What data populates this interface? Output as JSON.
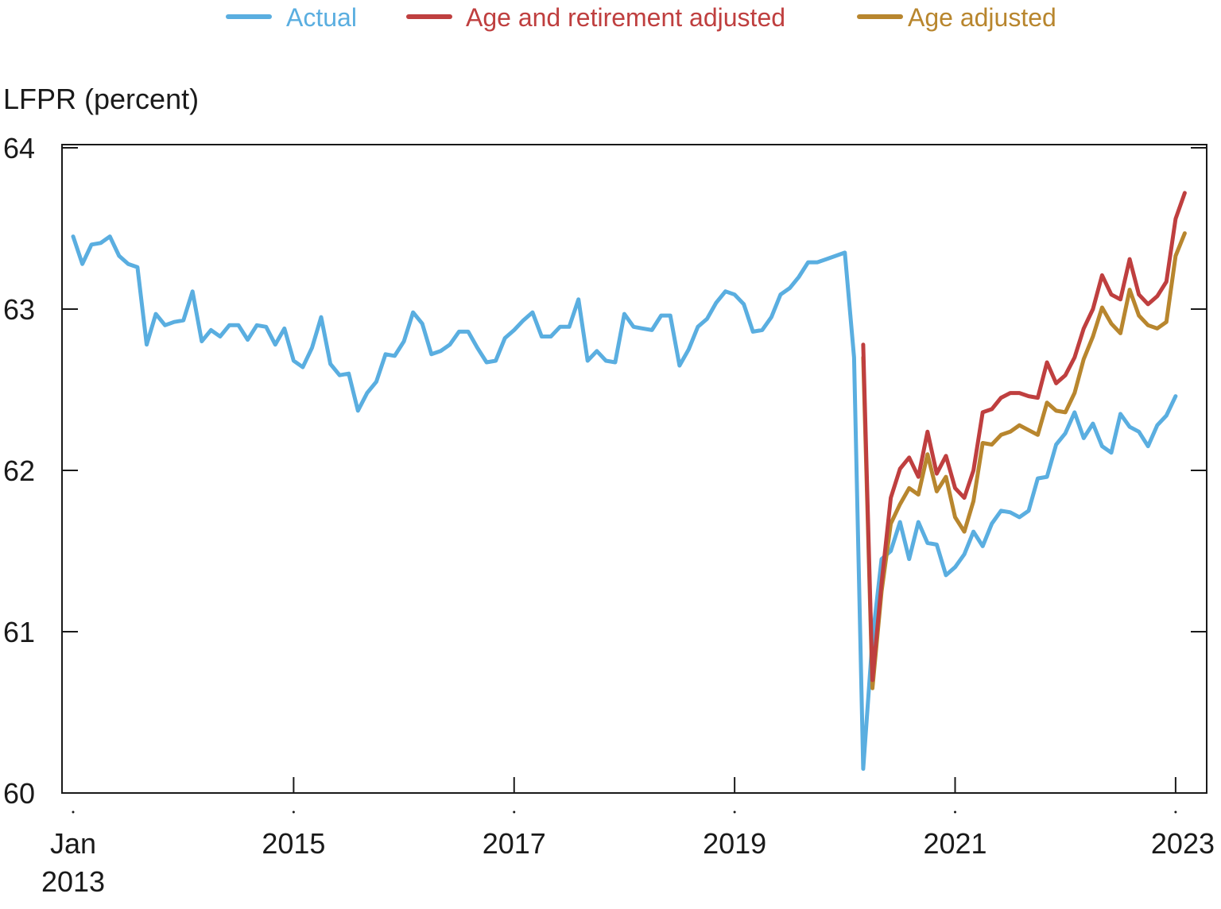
{
  "chart_data": {
    "type": "line",
    "title": "",
    "xlabel": "",
    "ylabel": "LFPR (percent)",
    "ylim": [
      60,
      64
    ],
    "xlim": [
      "2013-01",
      "2023-03"
    ],
    "y_ticks": [
      "60",
      "61",
      "62",
      "63",
      "64"
    ],
    "x_ticks": [
      {
        "date": "2013-01",
        "label": "Jan",
        "label2": "2013"
      },
      {
        "date": "2015-01",
        "label": "2015",
        "label2": ""
      },
      {
        "date": "2017-01",
        "label": "2017",
        "label2": ""
      },
      {
        "date": "2019-01",
        "label": "2019",
        "label2": ""
      },
      {
        "date": "2021-01",
        "label": "2021",
        "label2": ""
      },
      {
        "date": "2023-01",
        "label": "2023",
        "label2": ""
      }
    ],
    "grid": false,
    "legend_position": "top",
    "colors": {
      "actual": "#5aaee0",
      "age_retirement": "#bf3f3f",
      "age": "#b8862e"
    },
    "series": [
      {
        "name": "Actual",
        "color": "#5aaee0",
        "start": "2013-01",
        "values": [
          63.45,
          63.28,
          63.4,
          63.41,
          63.45,
          63.33,
          63.28,
          63.26,
          62.78,
          62.97,
          62.9,
          62.92,
          62.93,
          63.11,
          62.8,
          62.87,
          62.83,
          62.9,
          62.9,
          62.81,
          62.9,
          62.89,
          62.78,
          62.88,
          62.68,
          62.64,
          62.76,
          62.95,
          62.66,
          62.59,
          62.6,
          62.37,
          62.48,
          62.55,
          62.72,
          62.71,
          62.8,
          62.98,
          62.91,
          62.72,
          62.74,
          62.78,
          62.86,
          62.86,
          62.76,
          62.67,
          62.68,
          62.82,
          62.87,
          62.93,
          62.98,
          62.83,
          62.83,
          62.89,
          62.89,
          63.06,
          62.68,
          62.74,
          62.68,
          62.67,
          62.97,
          62.89,
          62.88,
          62.87,
          62.96,
          62.96,
          62.65,
          62.75,
          62.89,
          62.94,
          63.04,
          63.11,
          63.09,
          63.03,
          62.86,
          62.87,
          62.95,
          63.09,
          63.13,
          63.2,
          63.29,
          63.29,
          63.31,
          63.33,
          63.35,
          62.7,
          60.15,
          60.95,
          61.45,
          61.5,
          61.68,
          61.45,
          61.68,
          61.55,
          61.54,
          61.35,
          61.4,
          61.48,
          61.62,
          61.53,
          61.67,
          61.75,
          61.74,
          61.71,
          61.75,
          61.95,
          61.96,
          62.16,
          62.23,
          62.36,
          62.2,
          62.29,
          62.15,
          62.11,
          62.35,
          62.27,
          62.24,
          62.15,
          62.28,
          62.34,
          62.46
        ]
      },
      {
        "name": "Age and retirement adjusted",
        "color": "#bf3f3f",
        "start": "2020-03",
        "values": [
          62.78,
          60.7,
          61.3,
          61.83,
          62.01,
          62.08,
          61.96,
          62.24,
          61.98,
          62.09,
          61.89,
          61.83,
          62.0,
          62.36,
          62.38,
          62.45,
          62.48,
          62.48,
          62.46,
          62.45,
          62.67,
          62.54,
          62.59,
          62.7,
          62.88,
          63.0,
          63.21,
          63.09,
          63.06,
          63.31,
          63.09,
          63.03,
          63.08,
          63.17,
          63.56,
          63.72
        ]
      },
      {
        "name": "Age adjusted",
        "color": "#b8862e",
        "start": "2020-03",
        "values": [
          62.7,
          60.65,
          61.25,
          61.67,
          61.79,
          61.89,
          61.85,
          62.1,
          61.87,
          61.96,
          61.71,
          61.62,
          61.81,
          62.17,
          62.16,
          62.22,
          62.24,
          62.28,
          62.25,
          62.22,
          62.42,
          62.37,
          62.36,
          62.48,
          62.69,
          62.83,
          63.01,
          62.91,
          62.85,
          63.12,
          62.96,
          62.9,
          62.88,
          62.92,
          63.33,
          63.47
        ]
      }
    ]
  }
}
